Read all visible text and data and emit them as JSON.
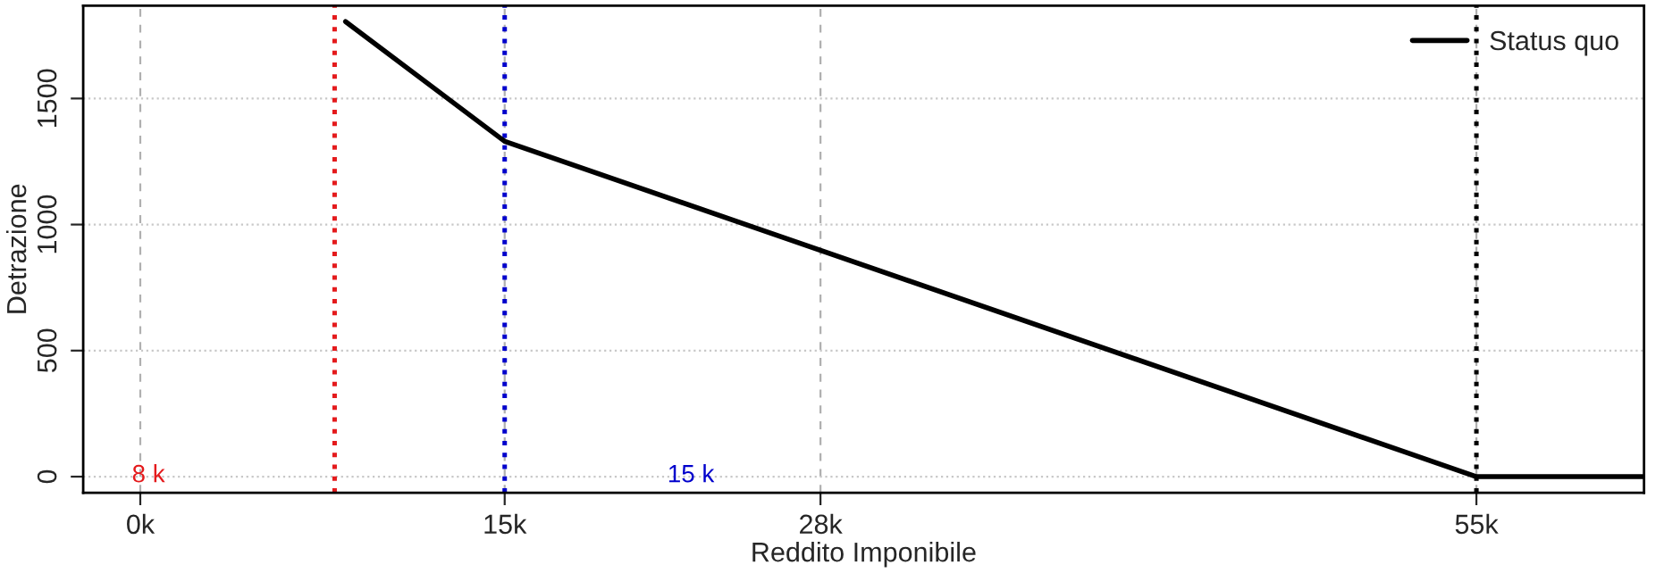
{
  "chart_data": {
    "type": "line",
    "xlabel": "Reddito Imponibile",
    "ylabel": "Detrazione",
    "xlim": [
      -2350,
      61900
    ],
    "ylim": [
      -64,
      1868
    ],
    "xticks": [
      {
        "value": 0,
        "label": "0k"
      },
      {
        "value": 15000,
        "label": "15k"
      },
      {
        "value": 28000,
        "label": "28k"
      },
      {
        "value": 55000,
        "label": "55k"
      }
    ],
    "yticks": [
      0,
      500,
      1000,
      1500
    ],
    "series": [
      {
        "name": "Status quo",
        "color": "#000000",
        "x": [
          8450,
          15000,
          55000,
          61900
        ],
        "values": [
          1805,
          1330,
          0,
          0
        ]
      }
    ],
    "ref_lines": [
      {
        "axis": "x",
        "value": 8000,
        "color": "#e41a1c",
        "line_style": "dotted",
        "label": "8 k"
      },
      {
        "axis": "x",
        "value": 15000,
        "color": "#0000cc",
        "line_style": "dotted",
        "label": "15 k"
      },
      {
        "axis": "x",
        "value": 55000,
        "color": "#000000",
        "line_style": "dotted"
      }
    ],
    "grid": true,
    "legend": "top right",
    "line_style": "solid"
  }
}
